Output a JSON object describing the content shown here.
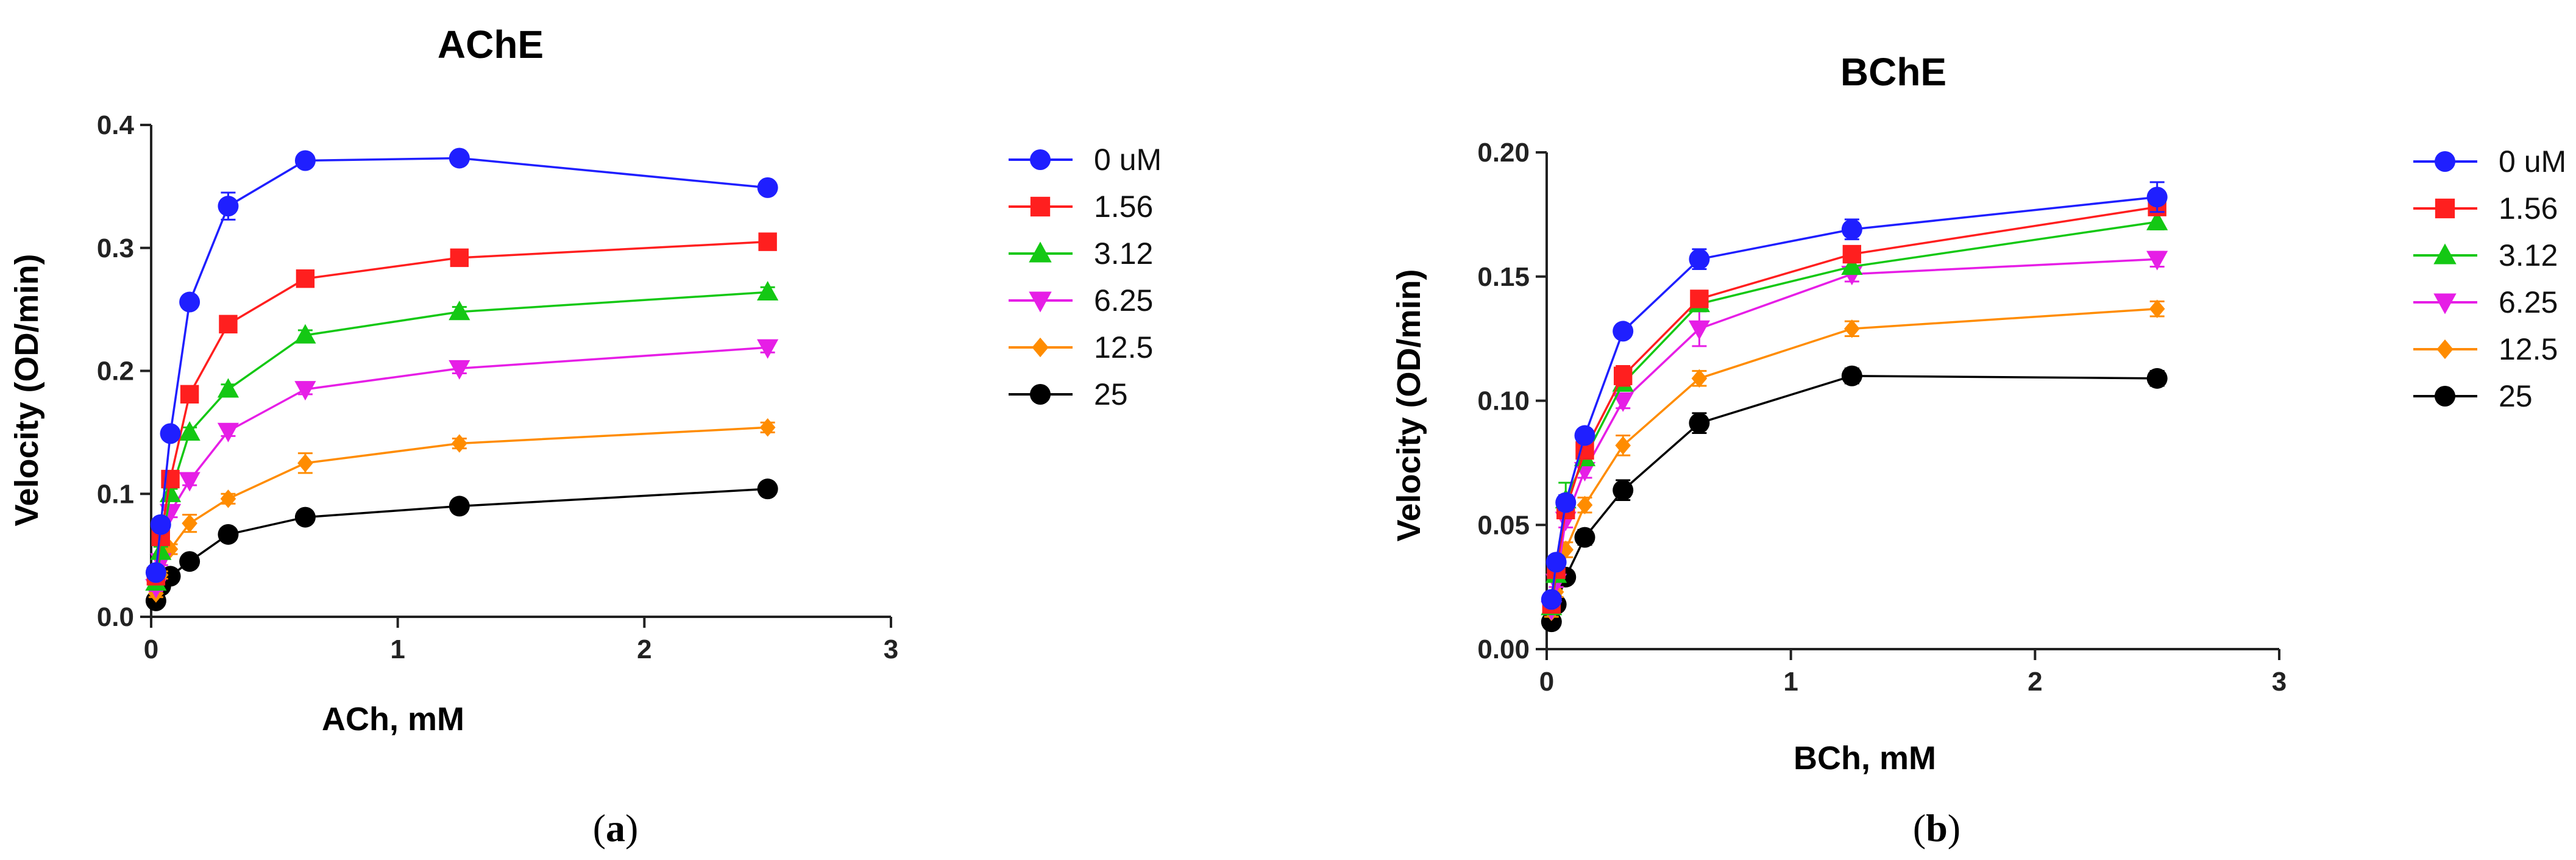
{
  "chart_data": [
    {
      "type": "line",
      "title": "AChE",
      "xlabel": "ACh, mM",
      "ylabel": "Velocity (OD/min)",
      "caption": "a",
      "xlim": [
        0,
        3
      ],
      "ylim": [
        0,
        0.4
      ],
      "xticks": [
        0,
        1,
        2,
        3
      ],
      "xtick_labels": [
        "0",
        "1",
        "2",
        "3"
      ],
      "yticks": [
        0,
        0.1,
        0.2,
        0.3,
        0.4
      ],
      "ytick_labels": [
        "0.0",
        "0.1",
        "0.2",
        "0.3",
        "0.4"
      ],
      "legend_position": "right",
      "x": [
        0.0195,
        0.039,
        0.078,
        0.156,
        0.3125,
        0.625,
        1.25,
        2.5
      ],
      "series": [
        {
          "name": "0 uM",
          "color": "#1f1fff",
          "marker": "circle",
          "values": [
            0.036,
            0.075,
            0.149,
            0.256,
            0.334,
            0.371,
            0.373,
            0.349
          ],
          "errors": [
            0.003,
            0.004,
            0.004,
            0.005,
            0.011,
            0.004,
            0.004,
            0.004
          ]
        },
        {
          "name": "1.56",
          "color": "#ff1f1f",
          "marker": "square",
          "values": [
            0.033,
            0.065,
            0.112,
            0.181,
            0.238,
            0.275,
            0.292,
            0.305
          ],
          "errors": [
            0.003,
            0.004,
            0.005,
            0.004,
            0.005,
            0.004,
            0.004,
            0.004
          ]
        },
        {
          "name": "3.12",
          "color": "#14c814",
          "marker": "triangle-up",
          "values": [
            0.028,
            0.053,
            0.1,
            0.15,
            0.185,
            0.229,
            0.248,
            0.264
          ],
          "errors": [
            0.003,
            0.004,
            0.004,
            0.004,
            0.004,
            0.004,
            0.004,
            0.004
          ]
        },
        {
          "name": "6.25",
          "color": "#e61ee6",
          "marker": "triangle-down",
          "values": [
            0.024,
            0.045,
            0.085,
            0.111,
            0.151,
            0.185,
            0.202,
            0.219
          ],
          "errors": [
            0.003,
            0.003,
            0.004,
            0.004,
            0.004,
            0.004,
            0.004,
            0.004
          ]
        },
        {
          "name": "12.5",
          "color": "#ff8c00",
          "marker": "diamond",
          "values": [
            0.019,
            0.034,
            0.055,
            0.076,
            0.096,
            0.125,
            0.141,
            0.154
          ],
          "errors": [
            0.003,
            0.003,
            0.004,
            0.007,
            0.004,
            0.008,
            0.004,
            0.004
          ]
        },
        {
          "name": "25",
          "color": "#000000",
          "marker": "circle",
          "values": [
            0.013,
            0.025,
            0.033,
            0.045,
            0.067,
            0.081,
            0.09,
            0.104
          ],
          "errors": [
            0.003,
            0.003,
            0.004,
            0.004,
            0.005,
            0.004,
            0.004,
            0.004
          ]
        }
      ]
    },
    {
      "type": "line",
      "title": "BChE",
      "xlabel": "BCh, mM",
      "ylabel": "Velocity (OD/min)",
      "caption": "b",
      "xlim": [
        0,
        3
      ],
      "ylim": [
        0,
        0.2
      ],
      "xticks": [
        0,
        1,
        2,
        3
      ],
      "xtick_labels": [
        "0",
        "1",
        "2",
        "3"
      ],
      "yticks": [
        0,
        0.05,
        0.1,
        0.15,
        0.2
      ],
      "ytick_labels": [
        "0.00",
        "0.05",
        "0.10",
        "0.15",
        "0.20"
      ],
      "legend_position": "right",
      "x": [
        0.0195,
        0.039,
        0.078,
        0.156,
        0.3125,
        0.625,
        1.25,
        2.5
      ],
      "series": [
        {
          "name": "0 uM",
          "color": "#1f1fff",
          "marker": "circle",
          "values": [
            0.02,
            0.035,
            0.059,
            0.086,
            0.128,
            0.157,
            0.169,
            0.182
          ],
          "errors": [
            0.002,
            0.002,
            0.003,
            0.002,
            0.002,
            0.004,
            0.004,
            0.006
          ]
        },
        {
          "name": "1.56",
          "color": "#ff1f1f",
          "marker": "square",
          "values": [
            0.018,
            0.032,
            0.056,
            0.08,
            0.11,
            0.141,
            0.159,
            0.178
          ],
          "errors": [
            0.002,
            0.002,
            0.003,
            0.003,
            0.004,
            0.003,
            0.003,
            0.003
          ]
        },
        {
          "name": "3.12",
          "color": "#14c814",
          "marker": "triangle-up",
          "values": [
            0.017,
            0.03,
            0.06,
            0.077,
            0.107,
            0.139,
            0.154,
            0.172
          ],
          "errors": [
            0.002,
            0.002,
            0.007,
            0.003,
            0.003,
            0.003,
            0.003,
            0.003
          ]
        },
        {
          "name": "6.25",
          "color": "#e61ee6",
          "marker": "triangle-down",
          "values": [
            0.016,
            0.027,
            0.052,
            0.072,
            0.1,
            0.129,
            0.151,
            0.157
          ],
          "errors": [
            0.002,
            0.002,
            0.003,
            0.003,
            0.003,
            0.007,
            0.003,
            0.003
          ]
        },
        {
          "name": "12.5",
          "color": "#ff8c00",
          "marker": "diamond",
          "values": [
            0.015,
            0.023,
            0.04,
            0.058,
            0.082,
            0.109,
            0.129,
            0.137
          ],
          "errors": [
            0.002,
            0.002,
            0.003,
            0.003,
            0.004,
            0.003,
            0.003,
            0.003
          ]
        },
        {
          "name": "25",
          "color": "#000000",
          "marker": "circle",
          "values": [
            0.011,
            0.018,
            0.029,
            0.045,
            0.064,
            0.091,
            0.11,
            0.109
          ],
          "errors": [
            0.002,
            0.002,
            0.002,
            0.003,
            0.004,
            0.004,
            0.003,
            0.003
          ]
        }
      ]
    }
  ]
}
